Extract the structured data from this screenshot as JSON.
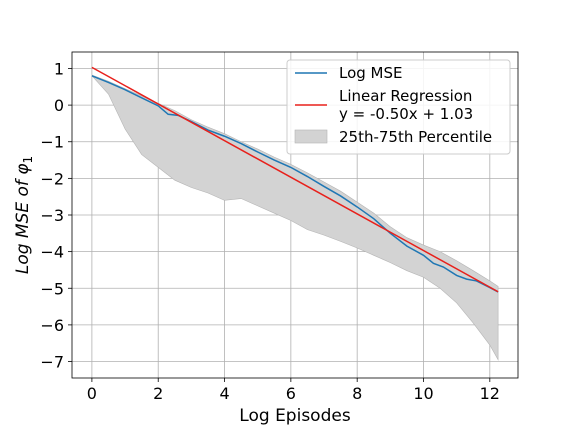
{
  "chart_data": {
    "type": "line",
    "title": "",
    "xlabel": "Log Episodes",
    "ylabel": "Log MSE of φ",
    "ylabel_subscript": "1",
    "xlim": [
      -0.6,
      12.85
    ],
    "ylim": [
      -7.45,
      1.45
    ],
    "xticks": [
      0,
      2,
      4,
      6,
      8,
      10,
      12
    ],
    "yticks": [
      1,
      0,
      -1,
      -2,
      -3,
      -4,
      -5,
      -6,
      -7
    ],
    "xtick_labels": [
      "0",
      "2",
      "4",
      "6",
      "8",
      "10",
      "12"
    ],
    "ytick_labels": [
      "1",
      "0",
      "−1",
      "−2",
      "−3",
      "−4",
      "−5",
      "−6",
      "−7"
    ],
    "grid": true,
    "legend_position": "top-right",
    "colors": {
      "log_mse": "#1f77b4",
      "regression": "#e8201b",
      "band_fill": "#d3d3d3",
      "band_edge": "#b5b5b5",
      "grid": "#b0b0b0"
    },
    "series": [
      {
        "name": "Log MSE",
        "x": [
          0.0,
          0.5,
          1.0,
          1.5,
          2.0,
          2.3,
          2.6,
          3.0,
          3.5,
          4.0,
          4.5,
          5.0,
          5.5,
          6.0,
          6.5,
          7.0,
          7.5,
          8.0,
          8.5,
          9.0,
          9.5,
          10.0,
          10.3,
          10.6,
          11.0,
          11.3,
          11.6,
          12.0,
          12.25
        ],
        "y": [
          0.8,
          0.62,
          0.42,
          0.2,
          -0.02,
          -0.25,
          -0.28,
          -0.45,
          -0.68,
          -0.85,
          -1.05,
          -1.28,
          -1.5,
          -1.7,
          -1.95,
          -2.22,
          -2.48,
          -2.78,
          -3.1,
          -3.5,
          -3.85,
          -4.1,
          -4.32,
          -4.42,
          -4.65,
          -4.75,
          -4.8,
          -4.98,
          -5.1
        ]
      },
      {
        "name": "Linear Regression\ny = -0.50x + 1.03",
        "label_lines": [
          "Linear Regression",
          "y = -0.50x + 1.03"
        ],
        "slope": -0.5,
        "intercept": 1.03,
        "x_range": [
          0.0,
          12.25
        ]
      },
      {
        "name": "25th-75th Percentile",
        "x": [
          0.0,
          0.5,
          1.0,
          1.5,
          2.0,
          2.5,
          3.0,
          3.5,
          4.0,
          4.5,
          5.0,
          5.5,
          6.0,
          6.5,
          7.0,
          7.5,
          8.0,
          8.5,
          9.0,
          9.5,
          10.0,
          10.5,
          11.0,
          11.5,
          12.0,
          12.25
        ],
        "upper": [
          0.82,
          0.65,
          0.45,
          0.25,
          0.05,
          -0.15,
          -0.4,
          -0.6,
          -0.78,
          -1.0,
          -1.2,
          -1.42,
          -1.62,
          -1.85,
          -2.1,
          -2.35,
          -2.65,
          -2.95,
          -3.32,
          -3.62,
          -3.82,
          -4.0,
          -4.25,
          -4.52,
          -4.8,
          -4.95
        ],
        "lower": [
          0.8,
          0.3,
          -0.65,
          -1.35,
          -1.7,
          -2.05,
          -2.25,
          -2.4,
          -2.6,
          -2.55,
          -2.75,
          -2.95,
          -3.15,
          -3.4,
          -3.55,
          -3.72,
          -3.9,
          -4.1,
          -4.3,
          -4.52,
          -4.7,
          -5.0,
          -5.4,
          -5.95,
          -6.55,
          -6.95
        ]
      }
    ]
  }
}
